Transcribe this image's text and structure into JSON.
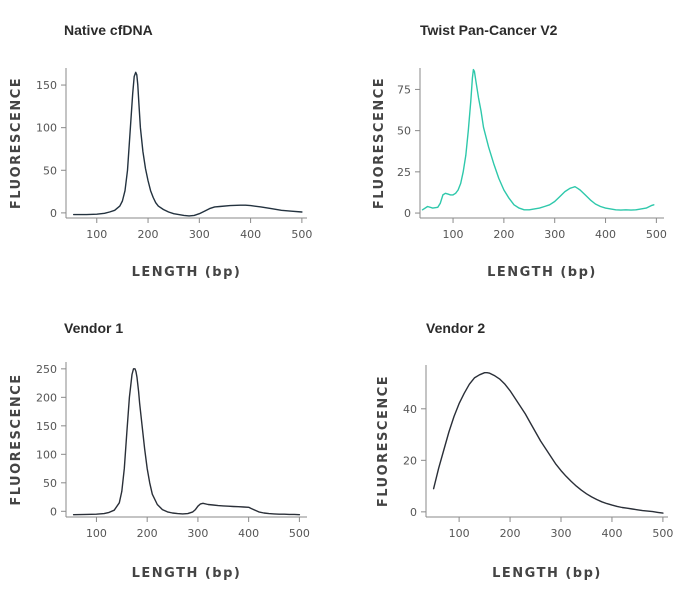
{
  "chart_data": [
    {
      "type": "line",
      "title": "Native cfDNA",
      "xlabel": "LENGTH (bp)",
      "ylabel": "FLUORESCENCE",
      "xlim": [
        40,
        510
      ],
      "ylim": [
        -6,
        170
      ],
      "xticks": [
        100,
        200,
        300,
        400,
        500
      ],
      "yticks": [
        0,
        50,
        100,
        150
      ],
      "grid": false,
      "color": "#23323f",
      "series": [
        {
          "x": [
            55,
            80,
            100,
            115,
            125,
            135,
            145,
            150,
            155,
            160,
            165,
            170,
            173,
            176,
            178,
            180,
            182,
            185,
            190,
            195,
            200,
            205,
            210,
            215,
            220,
            230,
            240,
            250,
            260,
            270,
            280,
            290,
            300,
            310,
            320,
            330,
            340,
            360,
            380,
            390,
            400,
            420,
            440,
            460,
            480,
            500
          ],
          "y": [
            -2,
            -2,
            -1.5,
            -0.5,
            1,
            3,
            8,
            14,
            26,
            50,
            95,
            140,
            160,
            165,
            162,
            150,
            130,
            100,
            72,
            52,
            38,
            26,
            18,
            12,
            8,
            4,
            1,
            -1,
            -2,
            -3,
            -3.5,
            -3,
            -1,
            2,
            5,
            7,
            7.5,
            8.5,
            9,
            9,
            8.5,
            7,
            5,
            3,
            2,
            1
          ]
        }
      ]
    },
    {
      "type": "line",
      "title": "Twist Pan-Cancer V2",
      "xlabel": "LENGTH (bp)",
      "ylabel": "FLUORESCENCE",
      "xlim": [
        35,
        515
      ],
      "ylim": [
        -3,
        88
      ],
      "xticks": [
        100,
        200,
        300,
        400,
        500
      ],
      "yticks": [
        0,
        25,
        50,
        75
      ],
      "grid": false,
      "color": "#2ec8ab",
      "series": [
        {
          "x": [
            40,
            50,
            60,
            70,
            75,
            80,
            85,
            90,
            95,
            100,
            105,
            110,
            115,
            120,
            125,
            130,
            135,
            138,
            140,
            142,
            145,
            150,
            155,
            160,
            170,
            180,
            190,
            200,
            210,
            220,
            230,
            240,
            250,
            260,
            270,
            280,
            290,
            300,
            310,
            320,
            330,
            335,
            340,
            345,
            350,
            360,
            370,
            380,
            390,
            400,
            410,
            420,
            430,
            440,
            450,
            460,
            470,
            480,
            490,
            495
          ],
          "y": [
            2,
            4,
            3,
            3.5,
            6,
            11,
            12,
            11.5,
            11,
            11,
            12,
            14,
            18,
            25,
            35,
            50,
            68,
            82,
            87,
            86,
            80,
            70,
            62,
            52,
            40,
            30,
            21,
            14,
            9,
            5,
            3,
            2,
            2,
            2.5,
            3,
            4,
            5,
            7,
            10,
            13,
            15,
            15.5,
            16,
            15,
            14,
            11,
            8,
            5.5,
            4,
            3,
            2.5,
            2,
            1.8,
            2,
            1.8,
            2,
            2.5,
            3,
            4.5,
            5
          ]
        }
      ]
    },
    {
      "type": "line",
      "title": "Vendor 1",
      "xlabel": "LENGTH (bp)",
      "ylabel": "FLUORESCENCE",
      "xlim": [
        40,
        515
      ],
      "ylim": [
        -10,
        262
      ],
      "xticks": [
        100,
        200,
        300,
        400,
        500
      ],
      "yticks": [
        0,
        50,
        100,
        150,
        200,
        250
      ],
      "grid": false,
      "color": "#2a2f38",
      "series": [
        {
          "x": [
            55,
            80,
            100,
            115,
            125,
            135,
            145,
            150,
            155,
            160,
            165,
            170,
            173,
            176,
            178,
            180,
            183,
            185,
            190,
            195,
            200,
            205,
            210,
            220,
            230,
            240,
            250,
            260,
            270,
            280,
            290,
            295,
            300,
            305,
            310,
            320,
            330,
            340,
            350,
            360,
            370,
            380,
            390,
            400,
            405,
            410,
            420,
            430,
            440,
            450,
            460,
            470,
            480,
            490,
            500
          ],
          "y": [
            -6,
            -5.5,
            -5,
            -4,
            -2,
            2,
            15,
            35,
            75,
            140,
            200,
            240,
            250,
            250,
            245,
            235,
            210,
            190,
            150,
            110,
            75,
            50,
            30,
            12,
            3,
            -1,
            -3,
            -4,
            -4.5,
            -4,
            -1,
            3,
            9,
            13,
            14,
            12,
            11,
            10,
            9.5,
            9,
            8.5,
            8,
            7.5,
            7,
            5,
            3,
            -1,
            -3,
            -4,
            -4.5,
            -5,
            -5,
            -5.5,
            -5.5,
            -6
          ]
        }
      ]
    },
    {
      "type": "line",
      "title": "Vendor 2",
      "xlabel": "LENGTH (bp)",
      "ylabel": "FLUORESCENCE",
      "xlim": [
        35,
        510
      ],
      "ylim": [
        -2,
        57
      ],
      "xticks": [
        100,
        200,
        300,
        400,
        500
      ],
      "yticks": [
        0,
        20,
        40
      ],
      "grid": false,
      "color": "#2a2f38",
      "series": [
        {
          "x": [
            50,
            60,
            70,
            80,
            90,
            100,
            110,
            120,
            130,
            140,
            150,
            155,
            160,
            165,
            170,
            180,
            190,
            200,
            210,
            220,
            230,
            240,
            250,
            260,
            270,
            280,
            290,
            300,
            310,
            320,
            330,
            340,
            350,
            360,
            370,
            380,
            390,
            400,
            410,
            420,
            430,
            440,
            450,
            460,
            470,
            480,
            490,
            500
          ],
          "y": [
            9,
            17,
            24,
            31,
            37,
            42,
            46,
            49.5,
            52,
            53.2,
            54,
            54,
            53.8,
            53.3,
            52.8,
            51.5,
            49.5,
            47,
            44,
            41,
            38,
            34.5,
            31,
            27.5,
            24.5,
            21.5,
            18.5,
            16,
            13.8,
            11.8,
            10,
            8.4,
            7,
            5.8,
            4.8,
            3.9,
            3.2,
            2.6,
            2.1,
            1.7,
            1.4,
            1.1,
            0.8,
            0.5,
            0.3,
            0.1,
            -0.2,
            -0.5
          ]
        }
      ]
    }
  ]
}
